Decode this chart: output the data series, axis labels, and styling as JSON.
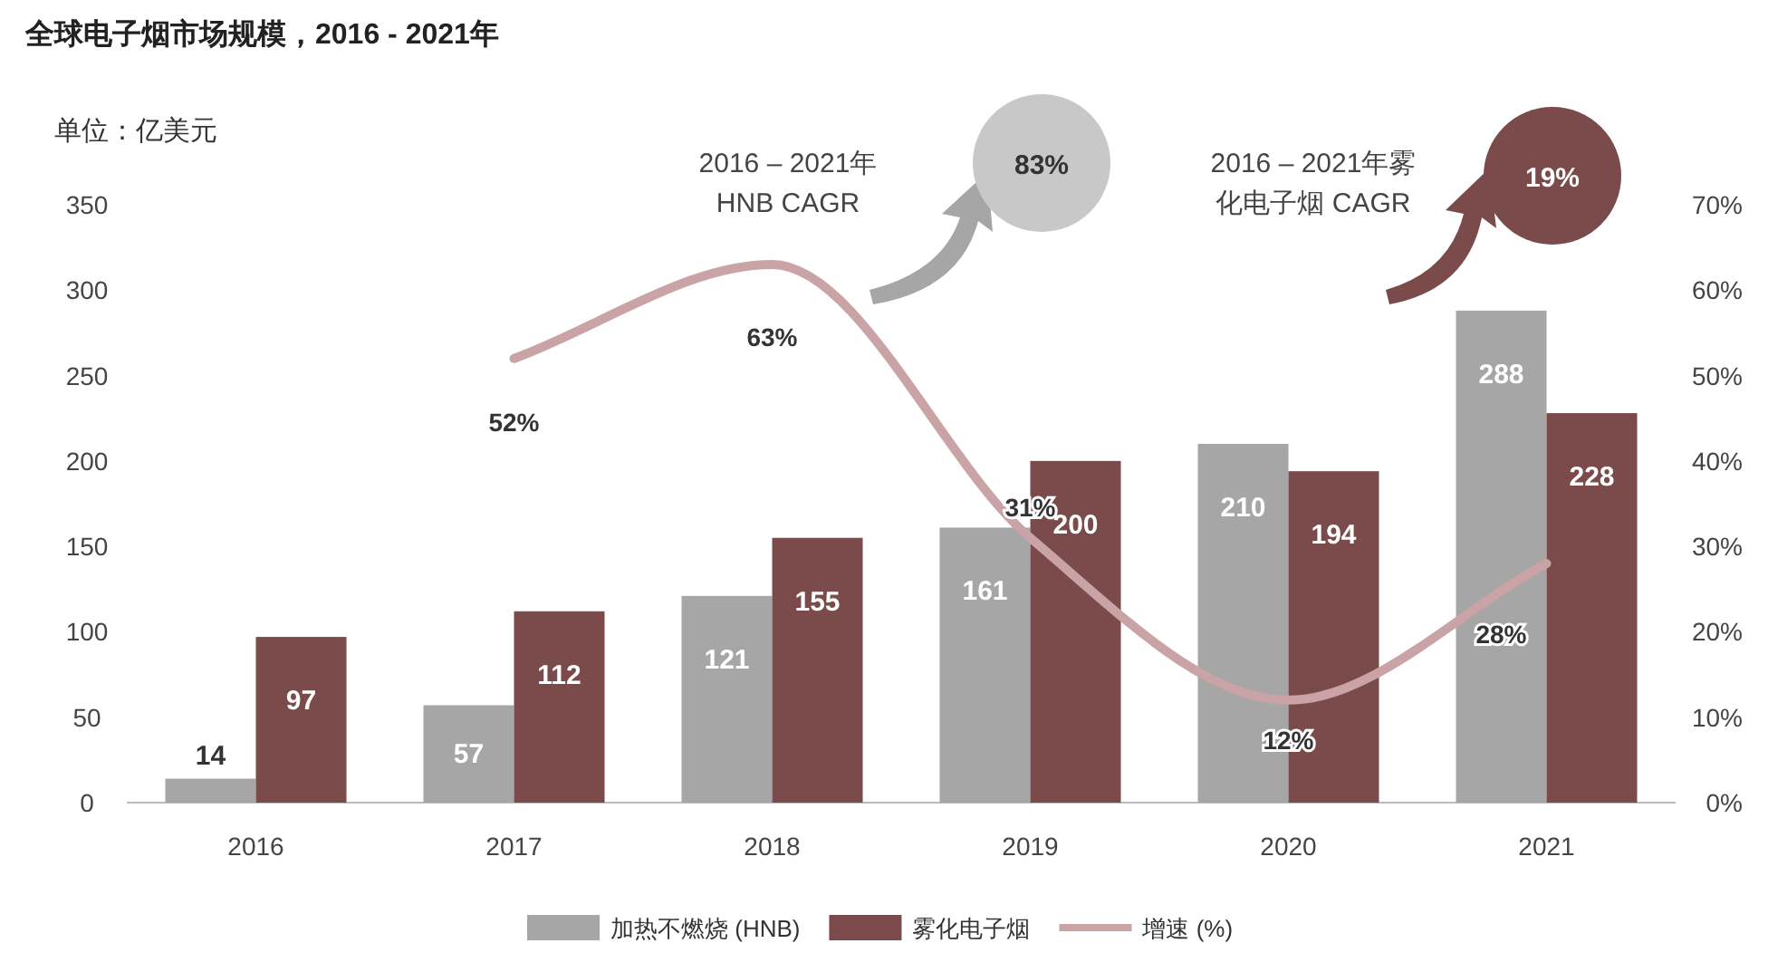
{
  "chart_data": {
    "type": "bar",
    "title": "全球电子烟市场规模，2016 - 2021年",
    "ylabel": "单位：亿美元",
    "categories": [
      "2016",
      "2017",
      "2018",
      "2019",
      "2020",
      "2021"
    ],
    "series": [
      {
        "name": "加热不燃烧 (HNB)",
        "color": "#a6a6a6",
        "values": [
          14,
          57,
          121,
          161,
          210,
          288
        ]
      },
      {
        "name": "雾化电子烟",
        "color": "#7b4a4a",
        "values": [
          97,
          112,
          155,
          200,
          194,
          228
        ]
      },
      {
        "name": "增速 (%)",
        "type": "line",
        "axis": "y2",
        "color": "#c9a3a5",
        "values": [
          null,
          52,
          63,
          31,
          12,
          28
        ],
        "value_labels": [
          null,
          "52%",
          "63%",
          "31%",
          "12%",
          "28%"
        ]
      }
    ],
    "ylim": [
      0,
      350
    ],
    "yticks": [
      0,
      50,
      100,
      150,
      200,
      250,
      300,
      350
    ],
    "y2lim": [
      0,
      70
    ],
    "y2ticks": [
      {
        "value": 0,
        "label": "0%"
      },
      {
        "value": 10,
        "label": "10%"
      },
      {
        "value": 20,
        "label": "20%"
      },
      {
        "value": 30,
        "label": "30%"
      },
      {
        "value": 40,
        "label": "40%"
      },
      {
        "value": 50,
        "label": "50%"
      },
      {
        "value": 60,
        "label": "60%"
      },
      {
        "value": 70,
        "label": "70%"
      }
    ],
    "data_labels": true,
    "legend": "bottom",
    "grid": false,
    "annotations": [
      "2016 – 2021年\nHNB CAGR",
      "83%",
      "2016 – 2021年雾化电子烟 CAGR",
      "19%"
    ]
  }
}
